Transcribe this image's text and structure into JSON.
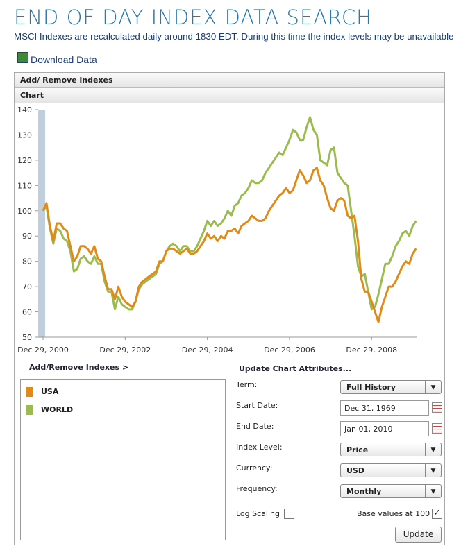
{
  "header": {
    "title": "END OF DAY INDEX DATA SEARCH",
    "subtitle": "MSCI Indexes are recalculated daily around 1830 EDT. During this time the index levels may be unavailable",
    "download": "Download Data"
  },
  "panels": {
    "indexes": "Add/ Remove indexes",
    "chart": "Chart",
    "add_remove": "Add/Remove Indexes >"
  },
  "chart_data": {
    "type": "line",
    "categories": [
      "Dec 29, 2000",
      null,
      null,
      null,
      null,
      null,
      null,
      null,
      null,
      null,
      null,
      null,
      null,
      null,
      null,
      null,
      null,
      null,
      null,
      null,
      null,
      null,
      null,
      null,
      "Dec 29, 2002",
      null,
      null,
      null,
      null,
      null,
      null,
      null,
      null,
      null,
      null,
      null,
      null,
      null,
      null,
      null,
      null,
      null,
      null,
      null,
      null,
      null,
      null,
      null,
      "Dec 29, 2004",
      null,
      null,
      null,
      null,
      null,
      null,
      null,
      null,
      null,
      null,
      null,
      null,
      null,
      null,
      null,
      null,
      null,
      null,
      null,
      null,
      null,
      null,
      null,
      "Dec 29, 2006",
      null,
      null,
      null,
      null,
      null,
      null,
      null,
      null,
      null,
      null,
      null,
      null,
      null,
      null,
      null,
      null,
      null,
      null,
      null,
      null,
      null,
      null,
      null,
      "Dec 29, 2008",
      null,
      null,
      null,
      null,
      null,
      null,
      null,
      null,
      null,
      null,
      null,
      null,
      null
    ],
    "series": [
      {
        "name": "USA",
        "color": "#e08a17",
        "values": [
          100,
          103,
          94,
          88,
          95,
          95,
          93,
          92,
          86,
          80,
          82,
          86,
          86,
          85,
          83,
          86,
          81,
          80,
          74,
          69,
          69,
          65,
          70,
          66,
          64,
          63,
          62,
          64,
          70,
          72,
          73,
          74,
          75,
          76,
          80,
          80,
          84,
          85,
          85,
          84,
          83,
          84,
          85,
          83,
          83,
          84,
          86,
          88,
          91,
          89,
          90,
          88,
          90,
          89,
          92,
          92,
          93,
          91,
          94,
          95,
          96,
          98,
          97,
          96,
          96,
          97,
          100,
          102,
          104,
          106,
          107,
          109,
          107,
          108,
          112,
          116,
          114,
          111,
          112,
          116,
          117,
          112,
          110,
          105,
          101,
          100,
          104,
          105,
          104,
          98,
          97,
          98,
          88,
          73,
          68,
          68,
          64,
          60,
          56,
          62,
          66,
          70,
          70,
          72,
          75,
          78,
          80,
          79,
          83,
          85
        ]
      },
      {
        "name": "WORLD",
        "color": "#9bbb4f",
        "values": [
          100,
          102,
          93,
          87,
          93,
          92,
          89,
          88,
          84,
          76,
          77,
          81,
          82,
          80,
          79,
          82,
          79,
          79,
          72,
          68,
          68,
          61,
          66,
          63,
          62,
          61,
          61,
          64,
          69,
          71,
          72,
          73,
          74,
          75,
          79,
          80,
          84,
          86,
          87,
          86,
          84,
          86,
          86,
          84,
          84,
          86,
          89,
          92,
          96,
          94,
          96,
          94,
          95,
          97,
          100,
          98,
          102,
          103,
          106,
          107,
          109,
          112,
          111,
          111,
          112,
          115,
          117,
          119,
          121,
          123,
          122,
          125,
          128,
          132,
          131,
          128,
          128,
          133,
          137,
          132,
          130,
          120,
          119,
          118,
          124,
          125,
          115,
          113,
          111,
          110,
          100,
          90,
          78,
          74,
          75,
          68,
          61,
          62,
          67,
          73,
          79,
          79,
          82,
          86,
          88,
          91,
          92,
          90,
          94,
          96
        ]
      }
    ],
    "ylim": [
      50,
      140
    ],
    "yticks": [
      50,
      60,
      70,
      80,
      90,
      100,
      110,
      120,
      130,
      140
    ]
  },
  "form": {
    "title": "Update Chart Attributes...",
    "fields": [
      {
        "label": "Term:",
        "value": "Full History",
        "kind": "select"
      },
      {
        "label": "Start Date:",
        "value": "Dec 31, 1969",
        "kind": "date"
      },
      {
        "label": "End Date:",
        "value": "Jan 01, 2010",
        "kind": "date"
      },
      {
        "label": "Index Level:",
        "value": "Price",
        "kind": "select"
      },
      {
        "label": "Currency:",
        "value": "USD",
        "kind": "select"
      },
      {
        "label": "Frequency:",
        "value": "Monthly",
        "kind": "select"
      }
    ],
    "log_scaling": {
      "label": "Log Scaling",
      "checked": false
    },
    "base_values": {
      "label": "Base values at 100",
      "checked": true
    },
    "button": "Update"
  }
}
